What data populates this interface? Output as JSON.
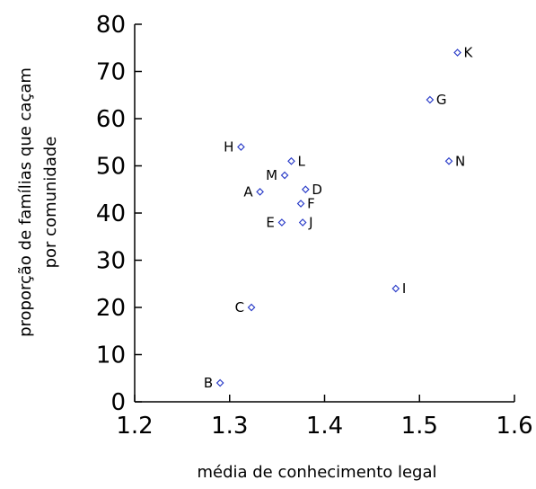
{
  "chart_data": {
    "type": "scatter",
    "title": "",
    "xlabel": "média de conhecimento legal",
    "ylabel": [
      "proporção de famílias que caçam",
      "por comunidade"
    ],
    "xlim": [
      1.2,
      1.6
    ],
    "ylim": [
      0,
      80
    ],
    "x_ticks": [
      "1.2",
      "1.3",
      "1.4",
      "1.5",
      "1.6"
    ],
    "y_ticks": [
      "0",
      "10",
      "20",
      "30",
      "40",
      "50",
      "60",
      "70",
      "80"
    ],
    "grid": false,
    "marker_color": "#2a3cc8",
    "points": [
      {
        "label": "K",
        "x": 1.54,
        "y": 74
      },
      {
        "label": "G",
        "x": 1.511,
        "y": 64
      },
      {
        "label": "N",
        "x": 1.531,
        "y": 51
      },
      {
        "label": "H",
        "x": 1.312,
        "y": 54
      },
      {
        "label": "L",
        "x": 1.365,
        "y": 51
      },
      {
        "label": "M",
        "x": 1.358,
        "y": 48
      },
      {
        "label": "A",
        "x": 1.332,
        "y": 44.5
      },
      {
        "label": "D",
        "x": 1.38,
        "y": 45
      },
      {
        "label": "F",
        "x": 1.375,
        "y": 42
      },
      {
        "label": "E",
        "x": 1.355,
        "y": 38
      },
      {
        "label": "J",
        "x": 1.377,
        "y": 38
      },
      {
        "label": "I",
        "x": 1.475,
        "y": 24
      },
      {
        "label": "C",
        "x": 1.323,
        "y": 20
      },
      {
        "label": "B",
        "x": 1.29,
        "y": 4
      }
    ]
  }
}
